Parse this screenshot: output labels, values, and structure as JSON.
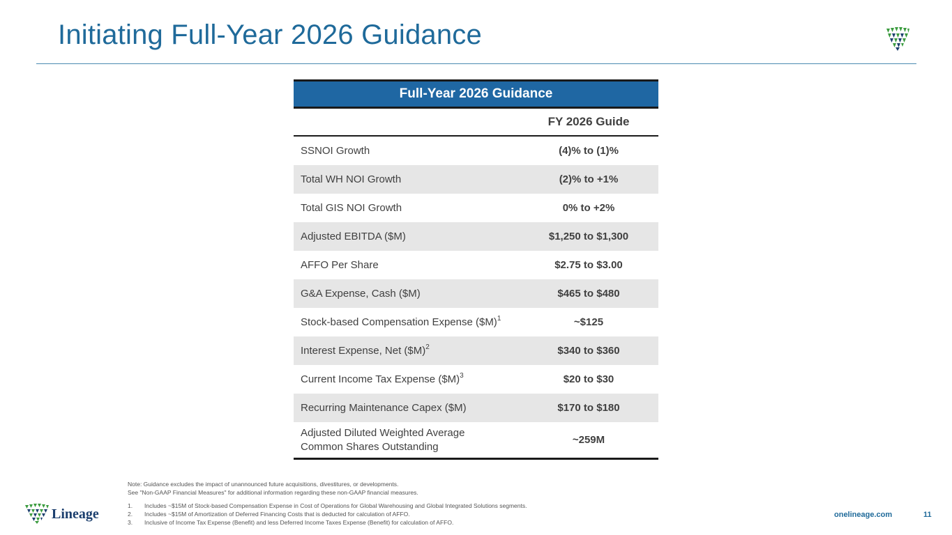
{
  "header": {
    "title": "Initiating Full-Year 2026 Guidance"
  },
  "table": {
    "title": "Full-Year 2026 Guidance",
    "column_header": "FY 2026 Guide",
    "rows": [
      {
        "label": "SSNOI Growth",
        "sup": "",
        "value": "(4)% to (1)%"
      },
      {
        "label": "Total WH NOI Growth",
        "sup": "",
        "value": "(2)% to +1%"
      },
      {
        "label": "Total GIS NOI Growth",
        "sup": "",
        "value": "0% to +2%"
      },
      {
        "label": "Adjusted EBITDA ($M)",
        "sup": "",
        "value": "$1,250 to $1,300"
      },
      {
        "label": "AFFO Per Share",
        "sup": "",
        "value": "$2.75 to $3.00"
      },
      {
        "label": "G&A Expense, Cash ($M)",
        "sup": "",
        "value": "$465 to $480"
      },
      {
        "label": "Stock-based Compensation Expense ($M)",
        "sup": "1",
        "value": "~$125"
      },
      {
        "label": "Interest Expense, Net ($M)",
        "sup": "2",
        "value": "$340 to $360"
      },
      {
        "label": "Current Income Tax Expense ($M)",
        "sup": "3",
        "value": "$20 to $30"
      },
      {
        "label": "Recurring Maintenance Capex ($M)",
        "sup": "",
        "value": "$170 to $180"
      },
      {
        "label_line1": "Adjusted Diluted Weighted Average",
        "label_line2": "Common Shares Outstanding",
        "value": "~259M"
      }
    ]
  },
  "notes": {
    "line1": "Note: Guidance excludes the impact of unannounced future acquisitions, divestitures, or developments.",
    "line2": "See \"Non-GAAP Financial Measures\" for additional information regarding these non-GAAP financial measures.",
    "footnotes": [
      {
        "num": "1.",
        "text": "Includes ~$15M of Stock-based Compensation Expense in Cost of Operations for Global Warehousing and Global Integrated Solutions segments."
      },
      {
        "num": "2.",
        "text": "Includes ~$15M of Amortization of Deferred Financing Costs that is deducted for calculation of AFFO."
      },
      {
        "num": "3.",
        "text": "Inclusive of Income Tax Expense (Benefit) and less Deferred Income Taxes Expense (Benefit) for calculation of AFFO."
      }
    ]
  },
  "footer": {
    "brand": "Lineage",
    "website": "onelineage.com",
    "page_number": "11"
  },
  "colors": {
    "title": "#1f6a9a",
    "table_header": "#1f67a3",
    "logo_green": "#3a9b3e",
    "logo_navy": "#1c3f6e"
  }
}
